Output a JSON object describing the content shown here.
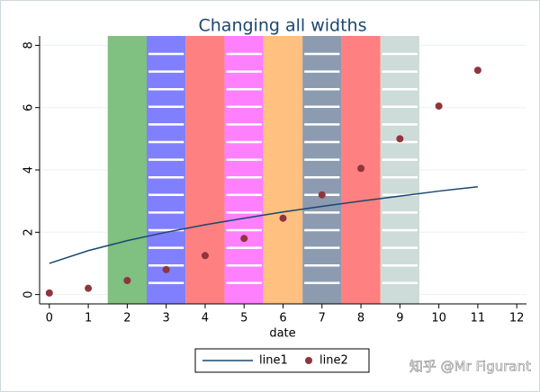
{
  "chart_data": {
    "type": "bands_line_scatter",
    "title": "Changing all widths",
    "x_label": "date",
    "xlim": [
      -0.25,
      12.25
    ],
    "xticks": [
      0,
      1,
      2,
      3,
      4,
      5,
      6,
      7,
      8,
      9,
      10,
      11,
      12
    ],
    "ylim": [
      -0.3,
      8.3
    ],
    "yticks": [
      0,
      2,
      4,
      6,
      8
    ],
    "grid": true,
    "bands": {
      "x": [
        2,
        3,
        4,
        5,
        6,
        7,
        8,
        9
      ],
      "width": 1,
      "colors": [
        "#80c080",
        "#8080ff",
        "#ff8080",
        "#ff80ff",
        "#ffc080",
        "#8c9bb0",
        "#ff8080",
        "#cddcd8"
      ],
      "hatched": [
        false,
        true,
        false,
        true,
        false,
        true,
        false,
        true
      ]
    },
    "x": [
      0,
      1,
      2,
      3,
      4,
      5,
      6,
      7,
      8,
      9,
      10,
      11
    ],
    "series": [
      {
        "name": "line1",
        "kind": "line",
        "color": "#1a476f",
        "values": [
          1,
          1.41,
          1.73,
          2,
          2.24,
          2.45,
          2.65,
          2.83,
          3,
          3.16,
          3.32,
          3.46
        ]
      },
      {
        "name": "line2",
        "kind": "scatter",
        "color": "#90353b",
        "values": [
          0.05,
          0.2,
          0.45,
          0.8,
          1.25,
          1.8,
          2.45,
          3.2,
          4.05,
          5,
          6.05,
          7.2
        ]
      }
    ],
    "legend": "bottom",
    "watermark": "知乎 @Mr Figurant"
  }
}
